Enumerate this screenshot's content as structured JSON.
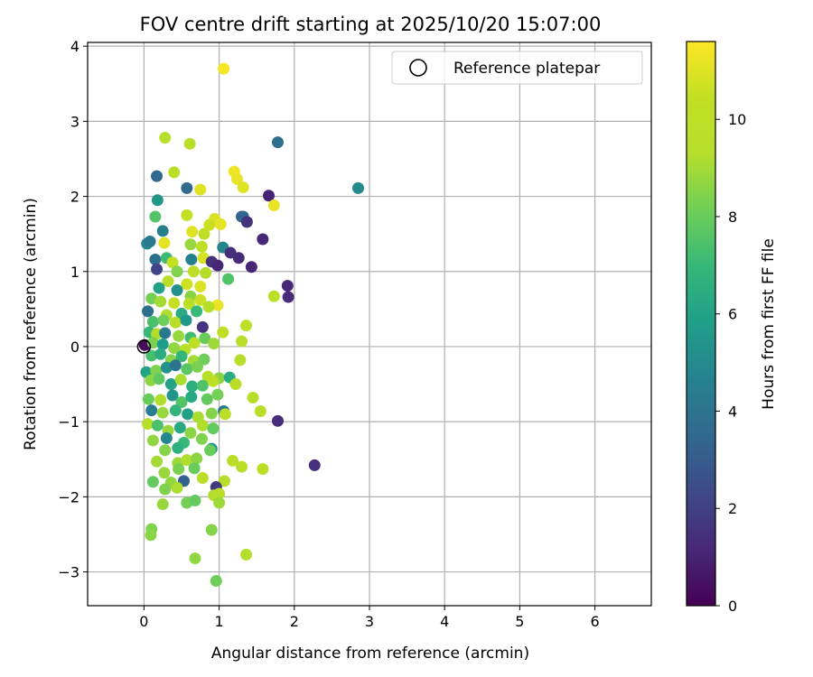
{
  "chart_data": {
    "type": "scatter",
    "title": "FOV centre drift starting at 2025/10/20 15:07:00",
    "xlabel": "Angular distance from reference (arcmin)",
    "ylabel": "Rotation from reference (arcmin)",
    "xlim": [
      -0.75,
      6.75
    ],
    "ylim": [
      -3.45,
      4.05
    ],
    "xticks": [
      0,
      1,
      2,
      3,
      4,
      5,
      6
    ],
    "yticks": [
      -3,
      -2,
      -1,
      0,
      1,
      2,
      3,
      4
    ],
    "grid": true,
    "colorbar": {
      "label": "Hours from first FF file",
      "min": 0,
      "max": 11.6,
      "ticks": [
        0,
        2,
        4,
        6,
        8,
        10
      ],
      "colormap": "viridis"
    },
    "reference": {
      "x": 0,
      "y": 0,
      "legend_label": "Reference platepar"
    },
    "legend_position": "top-right",
    "points": [
      [
        1.06,
        3.7,
        11.4
      ],
      [
        0.28,
        2.78,
        9.4
      ],
      [
        0.61,
        2.7,
        9.5
      ],
      [
        1.78,
        2.72,
        3.8
      ],
      [
        2.85,
        2.11,
        5.0
      ],
      [
        0.4,
        2.32,
        9.8
      ],
      [
        0.17,
        2.27,
        3.5
      ],
      [
        0.57,
        2.11,
        3.6
      ],
      [
        0.75,
        2.09,
        11.0
      ],
      [
        1.2,
        2.33,
        11.3
      ],
      [
        1.24,
        2.23,
        11.2
      ],
      [
        1.32,
        2.12,
        11.0
      ],
      [
        1.66,
        2.01,
        1.0
      ],
      [
        1.73,
        1.88,
        11.2
      ],
      [
        0.18,
        1.95,
        5.5
      ],
      [
        0.15,
        1.73,
        7.6
      ],
      [
        0.57,
        1.75,
        10.5
      ],
      [
        0.94,
        1.7,
        10.9
      ],
      [
        1.02,
        1.63,
        11.1
      ],
      [
        1.3,
        1.73,
        3.2
      ],
      [
        1.32,
        1.73,
        3.4
      ],
      [
        1.37,
        1.66,
        1.5
      ],
      [
        0.25,
        1.54,
        4.5
      ],
      [
        0.64,
        1.53,
        11.0
      ],
      [
        0.8,
        1.5,
        10.2
      ],
      [
        0.87,
        1.62,
        10.6
      ],
      [
        1.58,
        1.43,
        1.2
      ],
      [
        0.04,
        1.37,
        4.8
      ],
      [
        0.08,
        1.4,
        4.2
      ],
      [
        0.27,
        1.38,
        11.1
      ],
      [
        0.62,
        1.36,
        8.8
      ],
      [
        0.77,
        1.33,
        10.0
      ],
      [
        1.05,
        1.32,
        4.8
      ],
      [
        1.15,
        1.25,
        1.4
      ],
      [
        1.26,
        1.18,
        1.3
      ],
      [
        0.15,
        1.16,
        3.8
      ],
      [
        0.3,
        1.18,
        7.1
      ],
      [
        0.38,
        1.12,
        10.4
      ],
      [
        0.63,
        1.16,
        4.6
      ],
      [
        0.79,
        1.18,
        10.8
      ],
      [
        0.9,
        1.13,
        1.5
      ],
      [
        0.98,
        1.08,
        1.1
      ],
      [
        1.43,
        1.06,
        1.1
      ],
      [
        0.17,
        1.03,
        2.1
      ],
      [
        0.44,
        1.0,
        8.4
      ],
      [
        0.66,
        1.0,
        10.1
      ],
      [
        0.82,
        0.98,
        9.3
      ],
      [
        1.12,
        0.9,
        7.5
      ],
      [
        0.32,
        0.87,
        9.6
      ],
      [
        0.57,
        0.83,
        10.7
      ],
      [
        0.75,
        0.8,
        10.9
      ],
      [
        1.91,
        0.81,
        1.2
      ],
      [
        1.92,
        0.66,
        1.3
      ],
      [
        1.73,
        0.67,
        9.8
      ],
      [
        0.2,
        0.78,
        6.0
      ],
      [
        0.44,
        0.75,
        5.2
      ],
      [
        0.62,
        0.67,
        8.6
      ],
      [
        0.1,
        0.64,
        8.2
      ],
      [
        0.22,
        0.6,
        9.0
      ],
      [
        0.4,
        0.58,
        10.5
      ],
      [
        0.6,
        0.57,
        9.8
      ],
      [
        0.75,
        0.62,
        10.6
      ],
      [
        0.98,
        0.55,
        11.2
      ],
      [
        0.05,
        0.47,
        3.8
      ],
      [
        0.3,
        0.42,
        9.2
      ],
      [
        0.5,
        0.44,
        6.4
      ],
      [
        0.7,
        0.47,
        7.0
      ],
      [
        0.86,
        0.53,
        9.3
      ],
      [
        0.12,
        0.33,
        7.4
      ],
      [
        0.26,
        0.35,
        8.1
      ],
      [
        0.42,
        0.32,
        9.6
      ],
      [
        0.56,
        0.35,
        5.6
      ],
      [
        0.78,
        0.26,
        1.6
      ],
      [
        1.36,
        0.28,
        9.9
      ],
      [
        0.07,
        0.19,
        7.0
      ],
      [
        0.17,
        0.17,
        9.3
      ],
      [
        0.28,
        0.18,
        4.2
      ],
      [
        0.46,
        0.14,
        8.8
      ],
      [
        0.62,
        0.12,
        7.2
      ],
      [
        0.81,
        0.11,
        8.0
      ],
      [
        1.05,
        0.19,
        10.3
      ],
      [
        1.3,
        0.07,
        9.5
      ],
      [
        0.01,
        0.02,
        0.2
      ],
      [
        0.12,
        0.05,
        8.3
      ],
      [
        0.25,
        0.03,
        5.8
      ],
      [
        0.4,
        -0.02,
        8.7
      ],
      [
        0.55,
        -0.04,
        9.5
      ],
      [
        0.67,
        0.05,
        9.8
      ],
      [
        0.93,
        0.04,
        8.9
      ],
      [
        0.1,
        -0.12,
        7.3
      ],
      [
        0.22,
        -0.1,
        6.5
      ],
      [
        0.36,
        -0.18,
        8.5
      ],
      [
        0.5,
        -0.13,
        6.9
      ],
      [
        0.66,
        -0.19,
        9.0
      ],
      [
        0.8,
        -0.17,
        8.1
      ],
      [
        1.28,
        -0.18,
        9.4
      ],
      [
        0.03,
        -0.34,
        6.1
      ],
      [
        0.16,
        -0.32,
        8.4
      ],
      [
        0.3,
        -0.28,
        5.3
      ],
      [
        0.42,
        -0.25,
        4.0
      ],
      [
        0.57,
        -0.3,
        7.7
      ],
      [
        0.71,
        -0.27,
        8.3
      ],
      [
        0.85,
        -0.4,
        9.5
      ],
      [
        1.0,
        -0.42,
        8.6
      ],
      [
        1.14,
        -0.41,
        6.4
      ],
      [
        0.09,
        -0.45,
        8.6
      ],
      [
        0.2,
        -0.43,
        7.8
      ],
      [
        0.36,
        -0.5,
        6.0
      ],
      [
        0.49,
        -0.44,
        9.1
      ],
      [
        0.64,
        -0.53,
        6.6
      ],
      [
        0.78,
        -0.52,
        7.5
      ],
      [
        0.92,
        -0.46,
        10.0
      ],
      [
        1.22,
        -0.5,
        9.6
      ],
      [
        0.06,
        -0.7,
        8.0
      ],
      [
        0.22,
        -0.71,
        9.2
      ],
      [
        0.38,
        -0.65,
        5.4
      ],
      [
        0.5,
        -0.74,
        7.6
      ],
      [
        0.63,
        -0.67,
        6.3
      ],
      [
        0.84,
        -0.7,
        7.9
      ],
      [
        0.98,
        -0.64,
        8.2
      ],
      [
        1.45,
        -0.68,
        9.6
      ],
      [
        0.1,
        -0.85,
        4.4
      ],
      [
        0.25,
        -0.88,
        8.8
      ],
      [
        0.42,
        -0.85,
        6.8
      ],
      [
        0.58,
        -0.9,
        5.9
      ],
      [
        0.72,
        -0.94,
        9.1
      ],
      [
        0.9,
        -0.89,
        8.5
      ],
      [
        1.06,
        -0.86,
        4.2
      ],
      [
        1.08,
        -0.9,
        9.9
      ],
      [
        1.55,
        -0.86,
        9.7
      ],
      [
        1.78,
        -0.99,
        1.3
      ],
      [
        0.05,
        -1.03,
        9.4
      ],
      [
        0.18,
        -1.05,
        7.4
      ],
      [
        0.32,
        -1.12,
        8.8
      ],
      [
        0.48,
        -1.08,
        6.3
      ],
      [
        0.62,
        -1.15,
        8.6
      ],
      [
        0.78,
        -1.05,
        9.2
      ],
      [
        0.92,
        -1.09,
        7.9
      ],
      [
        0.12,
        -1.25,
        8.7
      ],
      [
        0.3,
        -1.22,
        4.8
      ],
      [
        0.53,
        -1.28,
        7.0
      ],
      [
        0.77,
        -1.23,
        8.4
      ],
      [
        0.28,
        -1.38,
        8.5
      ],
      [
        0.45,
        -1.35,
        6.6
      ],
      [
        0.9,
        -1.36,
        5.4
      ],
      [
        0.88,
        -1.38,
        8.0
      ],
      [
        0.17,
        -1.53,
        9.0
      ],
      [
        0.45,
        -1.55,
        8.9
      ],
      [
        0.57,
        -1.51,
        9.2
      ],
      [
        0.7,
        -1.49,
        8.6
      ],
      [
        1.18,
        -1.52,
        9.7
      ],
      [
        1.3,
        -1.6,
        9.6
      ],
      [
        1.58,
        -1.63,
        9.8
      ],
      [
        2.27,
        -1.58,
        1.4
      ],
      [
        0.27,
        -1.68,
        8.8
      ],
      [
        0.46,
        -1.63,
        8.3
      ],
      [
        0.67,
        -1.62,
        8.0
      ],
      [
        0.12,
        -1.8,
        7.9
      ],
      [
        0.36,
        -1.81,
        8.7
      ],
      [
        0.53,
        -1.79,
        3.2
      ],
      [
        0.78,
        -1.75,
        9.7
      ],
      [
        1.07,
        -1.79,
        9.5
      ],
      [
        0.28,
        -1.9,
        8.4
      ],
      [
        0.44,
        -1.88,
        9.1
      ],
      [
        0.96,
        -1.87,
        1.8
      ],
      [
        0.25,
        -2.1,
        8.8
      ],
      [
        0.57,
        -2.08,
        8.2
      ],
      [
        0.68,
        -2.05,
        7.9
      ],
      [
        0.93,
        -1.98,
        9.2
      ],
      [
        1.0,
        -1.96,
        9.6
      ],
      [
        1.0,
        -2.08,
        8.9
      ],
      [
        0.1,
        -2.43,
        8.4
      ],
      [
        0.09,
        -2.51,
        8.6
      ],
      [
        0.9,
        -2.44,
        8.5
      ],
      [
        0.68,
        -2.82,
        8.7
      ],
      [
        1.36,
        -2.77,
        9.3
      ],
      [
        0.96,
        -3.12,
        8.1
      ]
    ]
  }
}
